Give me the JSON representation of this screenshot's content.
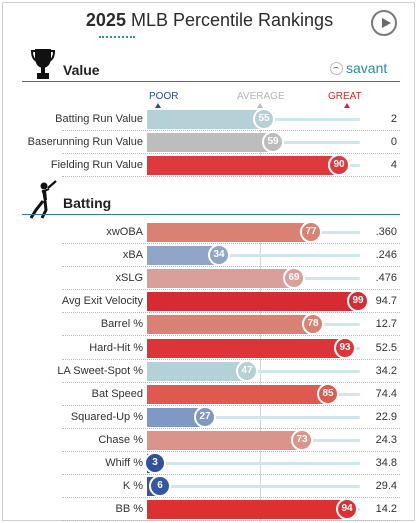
{
  "header": {
    "year": "2025",
    "title": "MLB Percentile Rankings"
  },
  "brand": "savant",
  "scale": {
    "poor": "POOR",
    "average": "AVERAGE",
    "great": "GREAT"
  },
  "colors": {
    "poor": "#2a4fa0",
    "average": "#a9a9a9",
    "great": "#d12c2c"
  },
  "sections": [
    {
      "title": "Value",
      "icon": "trophy-icon",
      "rows": [
        {
          "label": "Batting Run Value",
          "percentile": 55,
          "value": "2",
          "color": "#b5d0d6"
        },
        {
          "label": "Baserunning Run Value",
          "percentile": 59,
          "value": "0",
          "color": "#bdbdbd"
        },
        {
          "label": "Fielding Run Value",
          "percentile": 90,
          "value": "4",
          "color": "#de3a3d"
        }
      ]
    },
    {
      "title": "Batting",
      "icon": "batter-icon",
      "rows": [
        {
          "label": "xwOBA",
          "percentile": 77,
          "value": ".360",
          "color": "#d98273"
        },
        {
          "label": "xBA",
          "percentile": 34,
          "value": ".246",
          "color": "#90a5c7"
        },
        {
          "label": "xSLG",
          "percentile": 69,
          "value": ".476",
          "color": "#d9a09a"
        },
        {
          "label": "Avg Exit Velocity",
          "percentile": 99,
          "value": "94.7",
          "color": "#d72b33"
        },
        {
          "label": "Barrel %",
          "percentile": 78,
          "value": "12.7",
          "color": "#d98273"
        },
        {
          "label": "Hard-Hit %",
          "percentile": 93,
          "value": "52.5",
          "color": "#dd3437"
        },
        {
          "label": "LA Sweet-Spot %",
          "percentile": 47,
          "value": "34.2",
          "color": "#b3d1d6"
        },
        {
          "label": "Bat Speed",
          "percentile": 85,
          "value": "74.4",
          "color": "#de5a50"
        },
        {
          "label": "Squared-Up %",
          "percentile": 27,
          "value": "22.9",
          "color": "#7f98c4"
        },
        {
          "label": "Chase %",
          "percentile": 73,
          "value": "24.3",
          "color": "#d9948b"
        },
        {
          "label": "Whiff %",
          "percentile": 3,
          "value": "34.8",
          "color": "#2e52a0"
        },
        {
          "label": "K %",
          "percentile": 6,
          "value": "29.4",
          "color": "#3457a3"
        },
        {
          "label": "BB %",
          "percentile": 94,
          "value": "14.2",
          "color": "#dd3033"
        }
      ]
    }
  ]
}
